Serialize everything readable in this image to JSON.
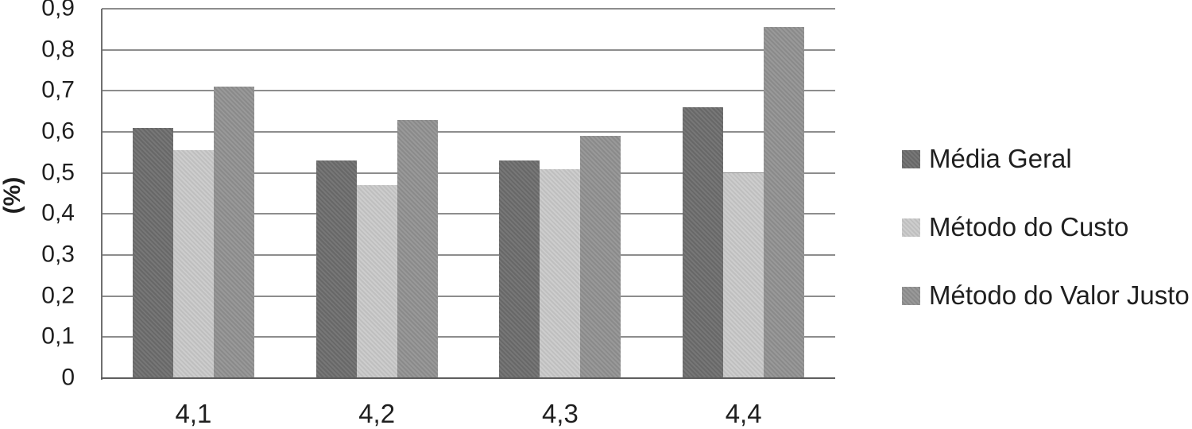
{
  "chart_data": {
    "type": "bar",
    "title": "",
    "categories": [
      "4,1",
      "4,2",
      "4,3",
      "4,4"
    ],
    "series": [
      {
        "name": "Média Geral",
        "color": "#6d6d6d",
        "values": [
          0.61,
          0.53,
          0.53,
          0.66
        ]
      },
      {
        "name": "Método do Custo",
        "color": "#c9c9c9",
        "values": [
          0.555,
          0.47,
          0.51,
          0.5
        ]
      },
      {
        "name": "Método do Valor Justo",
        "color": "#919191",
        "values": [
          0.71,
          0.63,
          0.59,
          0.855
        ]
      }
    ],
    "xlabel": "",
    "ylabel": "(%)",
    "ylim": [
      0,
      0.9
    ],
    "ytick_step": 0.1,
    "ytick_labels": [
      "0",
      "0,1",
      "0,2",
      "0,3",
      "0,4",
      "0,5",
      "0,6",
      "0,7",
      "0,8",
      "0,9"
    ],
    "grid": true,
    "legend_position": "right"
  },
  "colors": {
    "gridline": "#8d8d8d",
    "y_axis_line": "#707070",
    "x_axis_line": "#5e5e5e",
    "text": "#1f1f1f",
    "background": "#ffffff"
  }
}
